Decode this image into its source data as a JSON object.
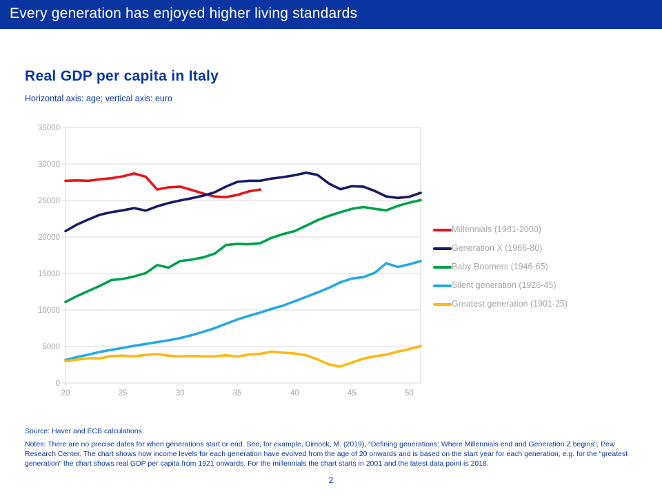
{
  "header": {
    "title": "Every generation has enjoyed higher living standards"
  },
  "slide": {
    "title": "Real GDP per capita in Italy",
    "subtitle": "Horizontal axis: age; vertical axis: euro",
    "source": "Source: Haver and ECB calculations.",
    "notes": "Notes: There are no precise dates for when generations start or end. See, for example, Dimock, M. (2019), “Defining generations: Where Millennials end and Generation Z begins”, Pew Research Center. The chart shows how income levels for each generation have evolved from the age of 20 onwards and is based on the start year for each generation, e.g. for the “greatest generation” the chart shows real GDP per capita from 1921 onwards. For the millennials the chart starts in 2001 and the latest data point is 2018.",
    "page_number": "2"
  },
  "colors": {
    "header_bg": "#0a35a0",
    "accent_blue": "#0a35a0",
    "axis_text": "#a6a6a6",
    "legend_text": "#a6a6a6",
    "gridline": "#d9d9d9"
  },
  "chart_data": {
    "type": "line",
    "title": "Real GDP per capita in Italy",
    "xlabel": "age",
    "ylabel": "euro",
    "xlim": [
      20,
      51
    ],
    "ylim": [
      0,
      35000
    ],
    "x_ticks": [
      20,
      25,
      30,
      35,
      40,
      45,
      50
    ],
    "y_ticks": [
      0,
      5000,
      10000,
      15000,
      20000,
      25000,
      30000,
      35000
    ],
    "grid": "horizontal",
    "legend_position": "right",
    "series": [
      {
        "name": "Millennials (1981-2000)",
        "color": "#e8141c",
        "x_start": 20,
        "values": [
          27700,
          27750,
          27700,
          27900,
          28050,
          28300,
          28700,
          28250,
          26500,
          26800,
          26900,
          26450,
          25950,
          25550,
          25450,
          25750,
          26250,
          26500
        ]
      },
      {
        "name": "Generation X (1966-80)",
        "color": "#1a1a66",
        "x_start": 20,
        "values": [
          20800,
          21700,
          22400,
          23050,
          23400,
          23650,
          23950,
          23600,
          24200,
          24650,
          25000,
          25300,
          25650,
          26100,
          26900,
          27550,
          27700,
          27700,
          28000,
          28200,
          28450,
          28800,
          28500,
          27300,
          26550,
          26950,
          26900,
          26300,
          25550,
          25350,
          25500,
          26050
        ]
      },
      {
        "name": "Baby Boomers (1946-65)",
        "color": "#00a14e",
        "x_start": 20,
        "values": [
          11100,
          11900,
          12600,
          13300,
          14100,
          14250,
          14600,
          15050,
          16150,
          15800,
          16700,
          16900,
          17200,
          17700,
          18900,
          19050,
          19000,
          19150,
          19900,
          20400,
          20800,
          21550,
          22300,
          22900,
          23400,
          23850,
          24100,
          23850,
          23650,
          24250,
          24700,
          25050
        ]
      },
      {
        "name": "Silent generation (1926-45)",
        "color": "#27aae1",
        "x_start": 20,
        "values": [
          3150,
          3550,
          3900,
          4250,
          4550,
          4800,
          5100,
          5350,
          5600,
          5850,
          6150,
          6550,
          7000,
          7500,
          8100,
          8700,
          9200,
          9650,
          10150,
          10600,
          11200,
          11800,
          12400,
          13050,
          13800,
          14300,
          14500,
          15100,
          16400,
          15900,
          16250,
          16700
        ]
      },
      {
        "name": "Greatest generation (1901-25)",
        "color": "#fdb914",
        "x_start": 20,
        "values": [
          3000,
          3200,
          3400,
          3380,
          3700,
          3750,
          3650,
          3850,
          3950,
          3750,
          3650,
          3700,
          3650,
          3650,
          3800,
          3620,
          3900,
          4000,
          4300,
          4150,
          4050,
          3800,
          3250,
          2550,
          2250,
          2800,
          3350,
          3650,
          3900,
          4300,
          4650,
          5050
        ]
      }
    ]
  }
}
